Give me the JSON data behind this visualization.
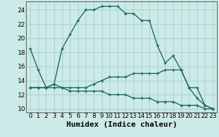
{
  "xlabel": "Humidex (Indice chaleur)",
  "background_color": "#cceae7",
  "grid_color": "#aed4d0",
  "line_color": "#1a6b5a",
  "xlim": [
    -0.5,
    23.5
  ],
  "ylim": [
    9.5,
    25.2
  ],
  "xticks": [
    0,
    1,
    2,
    3,
    4,
    5,
    6,
    7,
    8,
    9,
    10,
    11,
    12,
    13,
    14,
    15,
    16,
    17,
    18,
    19,
    20,
    21,
    22,
    23
  ],
  "yticks": [
    10,
    12,
    14,
    16,
    18,
    20,
    22,
    24
  ],
  "line1_y": [
    18.5,
    15.5,
    13.0,
    13.5,
    18.5,
    20.5,
    22.5,
    24.0,
    24.0,
    24.5,
    24.5,
    24.5,
    23.5,
    23.5,
    22.5,
    22.5,
    19.0,
    16.5,
    17.5,
    15.5,
    13.0,
    11.5,
    10.5,
    10.0
  ],
  "line2_y": [
    13.0,
    13.0,
    13.0,
    13.5,
    13.0,
    13.0,
    13.0,
    13.0,
    13.5,
    14.0,
    14.5,
    14.5,
    14.5,
    15.0,
    15.0,
    15.0,
    15.0,
    15.5,
    15.5,
    15.5,
    13.0,
    13.0,
    10.5,
    10.0
  ],
  "line3_y": [
    13.0,
    13.0,
    13.0,
    13.0,
    13.0,
    12.5,
    12.5,
    12.5,
    12.5,
    12.5,
    12.0,
    12.0,
    12.0,
    11.5,
    11.5,
    11.5,
    11.0,
    11.0,
    11.0,
    10.5,
    10.5,
    10.5,
    10.0,
    10.0
  ],
  "tick_fontsize": 6.5,
  "xlabel_fontsize": 8.0
}
